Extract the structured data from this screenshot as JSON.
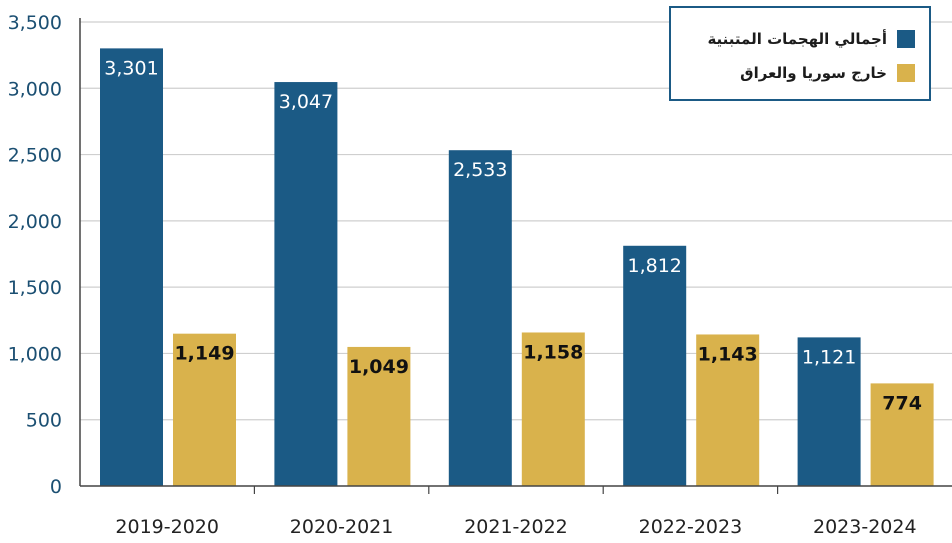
{
  "chart_data": {
    "type": "bar",
    "categories": [
      "2019-2020",
      "2020-2021",
      "2021-2022",
      "2022-2023",
      "2023-2024"
    ],
    "series": [
      {
        "name": "أجمالي الهجمات المتبنية",
        "color": "#1b5a85",
        "values": [
          3301,
          3047,
          2533,
          1812,
          1121
        ]
      },
      {
        "name": "خارج سوريا والعراق",
        "color": "#d9b24c",
        "values": [
          1149,
          1049,
          1158,
          1143,
          774
        ]
      }
    ],
    "data_labels": [
      [
        "3,301",
        "3,047",
        "2,533",
        "1,812",
        "1,121"
      ],
      [
        "1,149",
        "1,049",
        "1,158",
        "1,143",
        "774"
      ]
    ],
    "yticks": [
      0,
      500,
      1000,
      1500,
      2000,
      2500,
      3000,
      3500
    ],
    "ytick_labels": [
      "0",
      "500",
      "1,000",
      "1,500",
      "2,000",
      "2,500",
      "3,000",
      "3,500"
    ],
    "ylim": [
      0,
      3500
    ],
    "grid": true,
    "legend_position": "top-right"
  }
}
